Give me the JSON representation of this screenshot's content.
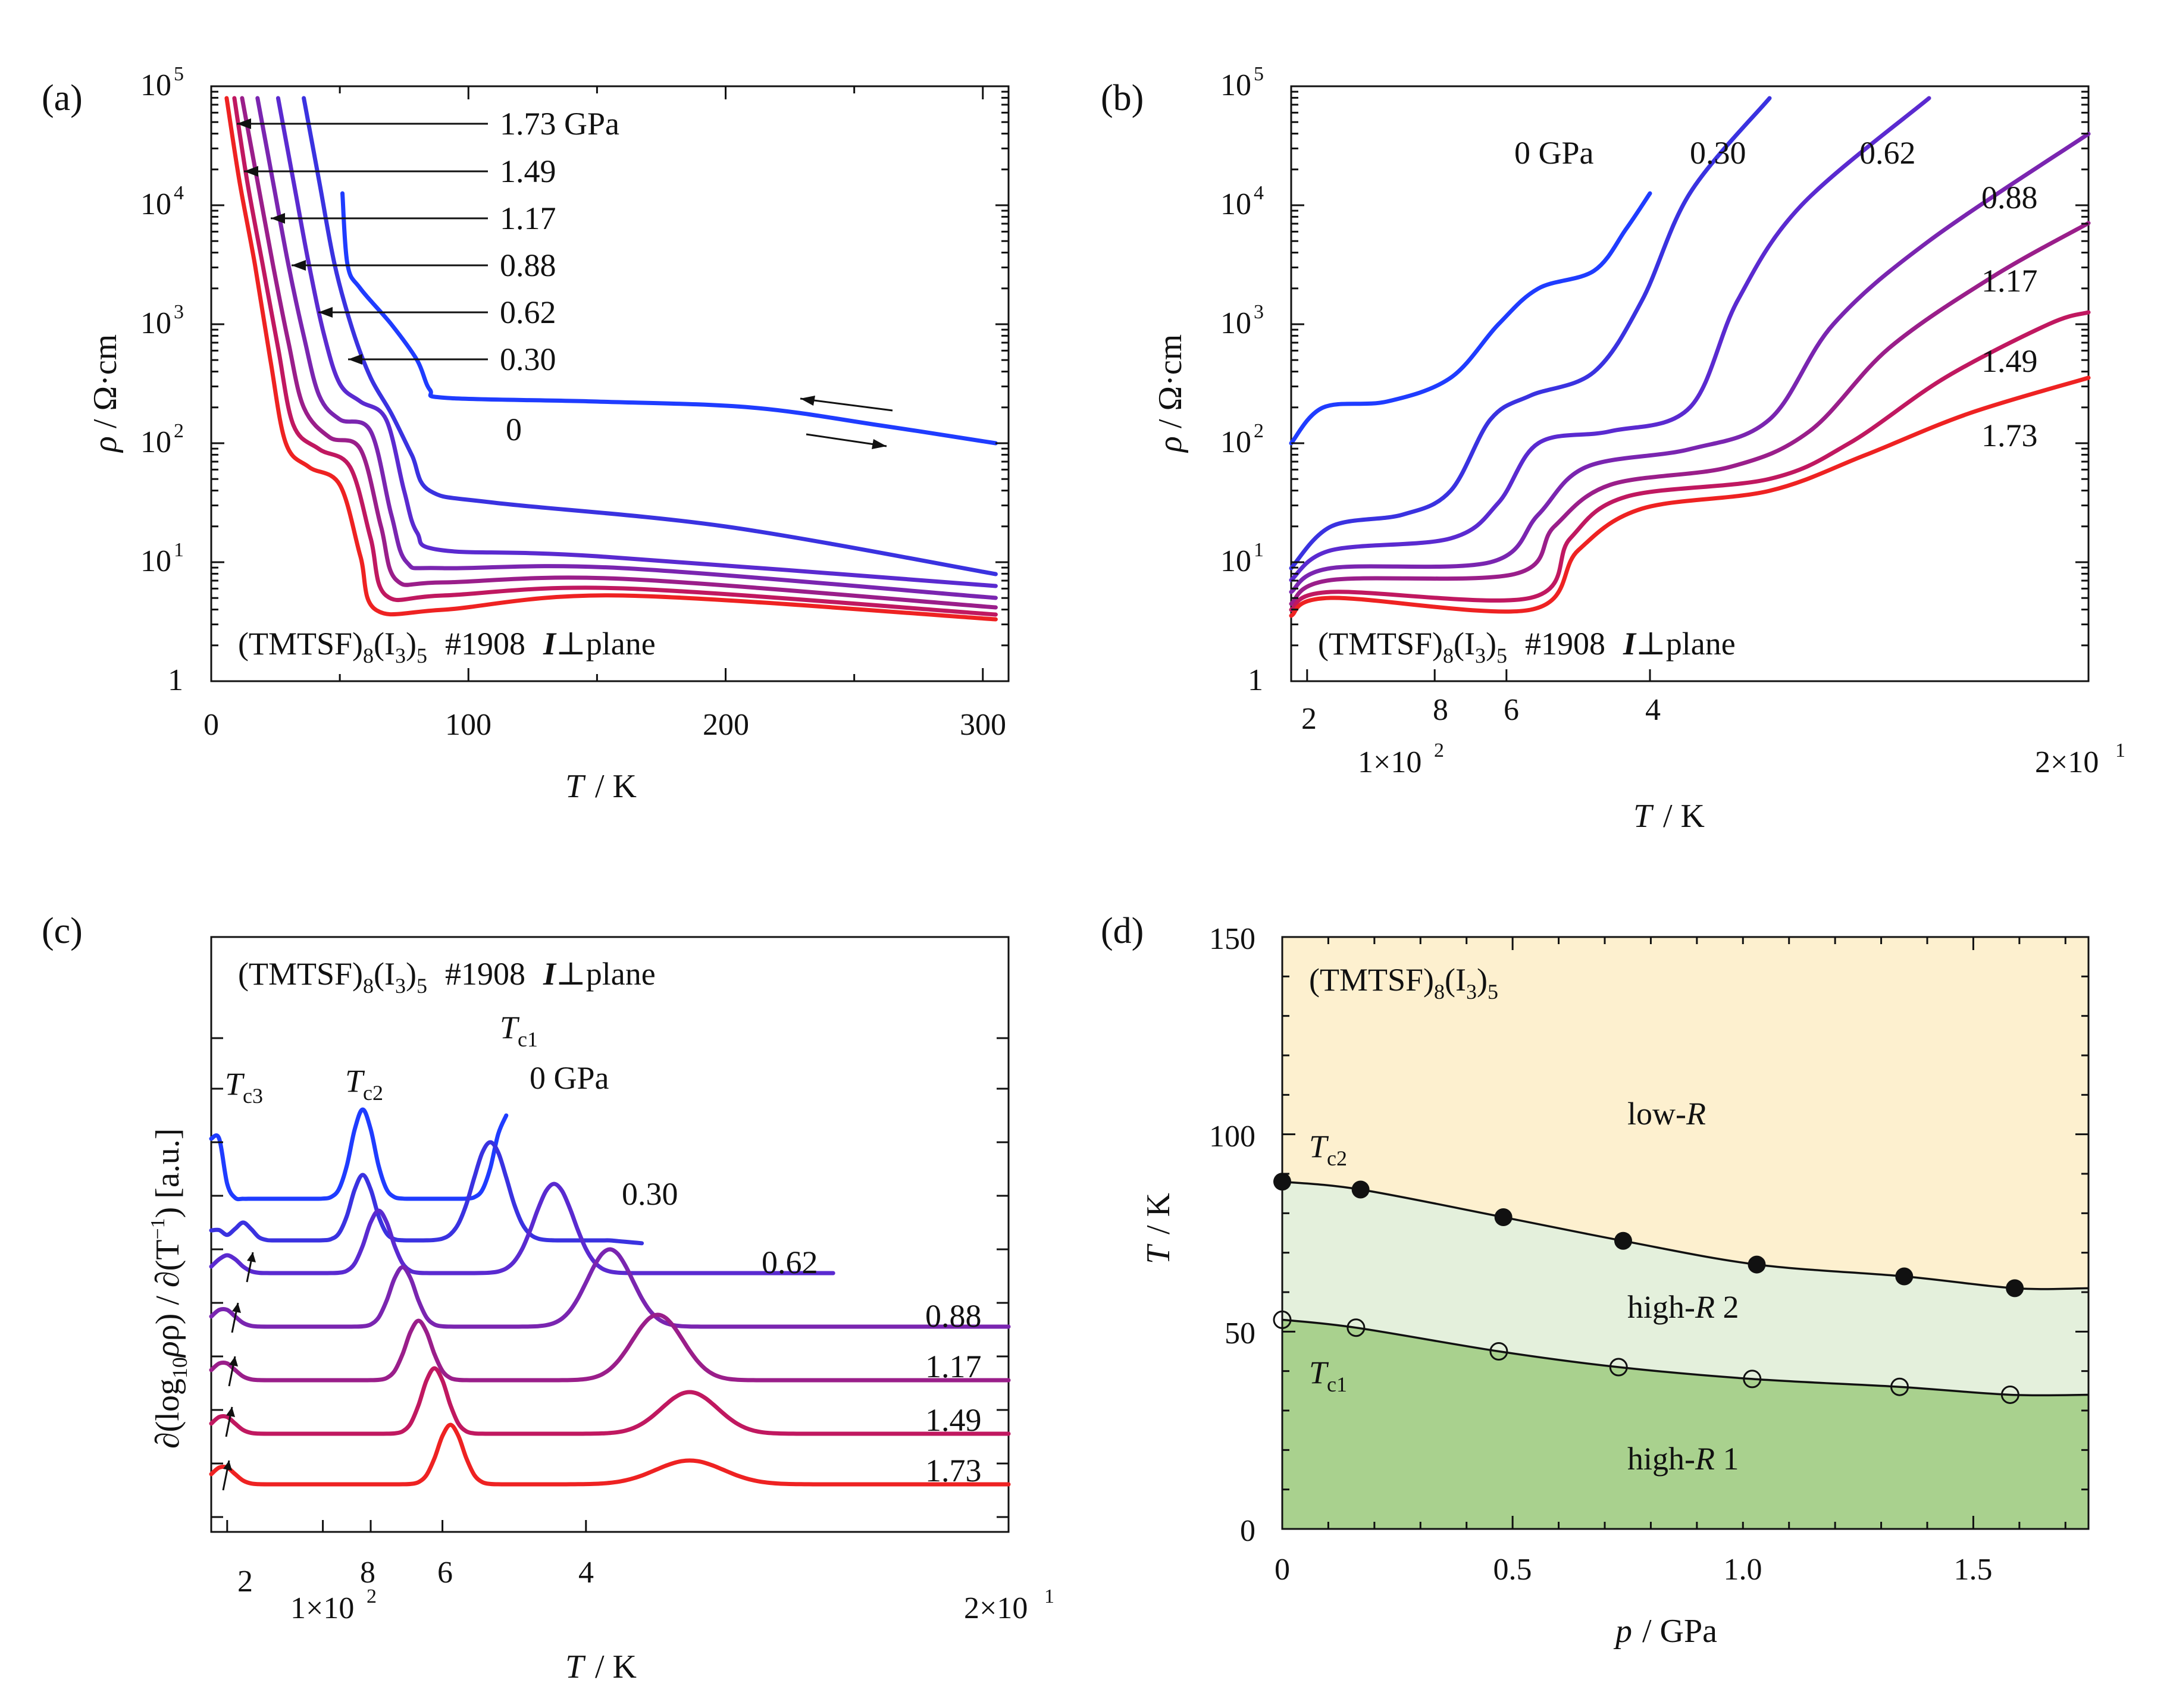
{
  "chart_data": [
    {
      "panel": "(a)",
      "type": "line",
      "title": "(TMTSF)8(I3)5 #1908 I⊥plane",
      "xlabel": "T / K",
      "ylabel": "ρ / Ω·cm",
      "xlim": [
        0,
        310
      ],
      "ylim_log10": [
        0,
        5
      ],
      "x_ticks": [
        "0",
        "100",
        "200",
        "300"
      ],
      "y_ticks": [
        "1",
        "10",
        "10",
        "10",
        "10",
        "10"
      ],
      "y_tick_exponents": [
        "",
        "1",
        "2",
        "3",
        "4",
        "5"
      ],
      "annotations": [
        "1.73 GPa",
        "1.49",
        "1.17",
        "0.88",
        "0.62",
        "0.30",
        "0"
      ],
      "series": [
        {
          "name": "0 GPa",
          "color": "#1f3cff",
          "points": [
            [
              51,
              4.1
            ],
            [
              53,
              3.5
            ],
            [
              58,
              3.3
            ],
            [
              70,
              3.0
            ],
            [
              80,
              2.7
            ],
            [
              85,
              2.45
            ],
            [
              92,
              2.38
            ],
            [
              150,
              2.35
            ],
            [
              210,
              2.3
            ],
            [
              260,
              2.15
            ],
            [
              305,
              2.0
            ]
          ]
        },
        {
          "name": "0.30 GPa",
          "color": "#3a32e0",
          "points": [
            [
              36,
              4.9
            ],
            [
              42,
              4.2
            ],
            [
              48,
              3.5
            ],
            [
              55,
              2.95
            ],
            [
              62,
              2.55
            ],
            [
              70,
              2.25
            ],
            [
              78,
              1.9
            ],
            [
              85,
              1.6
            ],
            [
              110,
              1.5
            ],
            [
              200,
              1.3
            ],
            [
              305,
              0.9
            ]
          ]
        },
        {
          "name": "0.62 GPa",
          "color": "#5a2ad0",
          "points": [
            [
              26,
              4.9
            ],
            [
              32,
              4.2
            ],
            [
              38,
              3.5
            ],
            [
              44,
              2.9
            ],
            [
              50,
              2.5
            ],
            [
              58,
              2.35
            ],
            [
              68,
              2.2
            ],
            [
              75,
              1.6
            ],
            [
              80,
              1.25
            ],
            [
              90,
              1.1
            ],
            [
              150,
              1.05
            ],
            [
              305,
              0.8
            ]
          ]
        },
        {
          "name": "0.88 GPa",
          "color": "#7a25b0",
          "points": [
            [
              18,
              4.9
            ],
            [
              24,
              4.2
            ],
            [
              30,
              3.5
            ],
            [
              36,
              2.9
            ],
            [
              42,
              2.4
            ],
            [
              50,
              2.2
            ],
            [
              62,
              2.1
            ],
            [
              70,
              1.4
            ],
            [
              76,
              1.0
            ],
            [
              90,
              0.95
            ],
            [
              160,
              0.95
            ],
            [
              305,
              0.7
            ]
          ]
        },
        {
          "name": "1.17 GPa",
          "color": "#9a1e8a",
          "points": [
            [
              12,
              4.9
            ],
            [
              18,
              4.2
            ],
            [
              24,
              3.5
            ],
            [
              30,
              2.85
            ],
            [
              36,
              2.3
            ],
            [
              46,
              2.05
            ],
            [
              58,
              1.95
            ],
            [
              66,
              1.3
            ],
            [
              72,
              0.85
            ],
            [
              90,
              0.83
            ],
            [
              160,
              0.86
            ],
            [
              305,
              0.62
            ]
          ]
        },
        {
          "name": "1.49 GPa",
          "color": "#c01860",
          "points": [
            [
              9,
              4.9
            ],
            [
              14,
              4.2
            ],
            [
              20,
              3.5
            ],
            [
              26,
              2.8
            ],
            [
              32,
              2.15
            ],
            [
              42,
              1.95
            ],
            [
              54,
              1.8
            ],
            [
              62,
              1.2
            ],
            [
              68,
              0.72
            ],
            [
              90,
              0.72
            ],
            [
              160,
              0.78
            ],
            [
              305,
              0.56
            ]
          ]
        },
        {
          "name": "1.73 GPa",
          "color": "#ee2222",
          "points": [
            [
              6,
              4.9
            ],
            [
              11,
              4.2
            ],
            [
              17,
              3.5
            ],
            [
              23,
              2.7
            ],
            [
              29,
              2.0
            ],
            [
              38,
              1.8
            ],
            [
              50,
              1.65
            ],
            [
              58,
              1.05
            ],
            [
              64,
              0.6
            ],
            [
              90,
              0.6
            ],
            [
              160,
              0.72
            ],
            [
              305,
              0.52
            ]
          ]
        }
      ]
    },
    {
      "panel": "(b)",
      "type": "line",
      "title": "(TMTSF)8(I3)5 #1908 I⊥plane",
      "xlabel": "T / K",
      "ylabel": "ρ / Ω·cm",
      "x_scale": "1/T",
      "ylim_log10": [
        0,
        5
      ],
      "x_ticks": [
        "2",
        "8",
        "6",
        "4"
      ],
      "x_extra_labels": [
        "1×10",
        "2×10"
      ],
      "x_extra_exponents": [
        "2",
        "1"
      ],
      "y_ticks": [
        "1",
        "10",
        "10",
        "10",
        "10",
        "10"
      ],
      "y_tick_exponents": [
        "",
        "1",
        "2",
        "3",
        "4",
        "5"
      ],
      "annotations": [
        "0 GPa",
        "0.30",
        "0.62",
        "0.88",
        "1.17",
        "1.49",
        "1.73"
      ]
    },
    {
      "panel": "(c)",
      "type": "line",
      "title": "(TMTSF)8(I3)5 #1908 I⊥plane",
      "xlabel": "T / K",
      "ylabel": "∂(log10ρ) / ∂(T−1) [a.u.]",
      "x_scale": "1/T",
      "x_ticks": [
        "2",
        "8",
        "6",
        "4"
      ],
      "x_extra_labels": [
        "1×10",
        "2×10"
      ],
      "x_extra_exponents": [
        "2",
        "1"
      ],
      "annotations": [
        "T c3",
        "T c2",
        "T c1",
        "0 GPa",
        "0.30",
        "0.62",
        "0.88",
        "1.17",
        "1.49",
        "1.73"
      ]
    },
    {
      "panel": "(d)",
      "type": "scatter",
      "title": "(TMTSF)8(I3)5",
      "xlabel": "p / GPa",
      "ylabel": "T / K",
      "xlim": [
        0,
        1.75
      ],
      "ylim": [
        0,
        150
      ],
      "x_ticks": [
        "0",
        "0.5",
        "1.0",
        "1.5"
      ],
      "y_ticks": [
        "0",
        "50",
        "100",
        "150"
      ],
      "regions": [
        "low-R",
        "high-R 2",
        "high-R 1"
      ],
      "region_colors": [
        "#fdf0cf",
        "#e4f0dc",
        "#a9d18e"
      ],
      "series": [
        {
          "name": "T c2",
          "marker": "filled-circle",
          "x": [
            0.0,
            0.17,
            0.48,
            0.74,
            1.03,
            1.35,
            1.59
          ],
          "y": [
            88,
            86,
            79,
            73,
            67,
            64,
            61
          ]
        },
        {
          "name": "T c1",
          "marker": "open-circle",
          "x": [
            0.0,
            0.16,
            0.47,
            0.73,
            1.02,
            1.34,
            1.58
          ],
          "y": [
            53,
            51,
            45,
            41,
            38,
            36,
            34
          ]
        }
      ]
    }
  ],
  "labels": {
    "panel_a": "(a)",
    "panel_b": "(b)",
    "panel_c": "(c)",
    "panel_d": "(d)",
    "compound": "(TMTSF)",
    "sub8": "8",
    "i3": "(I",
    "sub3": "3",
    "close5": ")",
    "sub5": "5",
    "sample": "#1908",
    "current": "I",
    "perp": "⊥",
    "plane": "plane",
    "rho_sym": "ρ",
    "rho_unit": "/ Ω·cm",
    "t_sym": "T",
    "k_unit": "/ K",
    "p_sym": "p",
    "gpa_unit": "/ GPa",
    "deriv_label": "∂(log",
    "deriv_sub": "10",
    "deriv_mid": "ρ) / ∂(T",
    "deriv_sup": "−1",
    "deriv_end": ") [a.u.]",
    "lowR": "low-",
    "R": "R",
    "highR2_pre": "high-",
    "highR2_post": " 2",
    "highR1_post": " 1",
    "tc_T": "T",
    "tc1": "c1",
    "tc2": "c2",
    "tc3": "c3"
  }
}
